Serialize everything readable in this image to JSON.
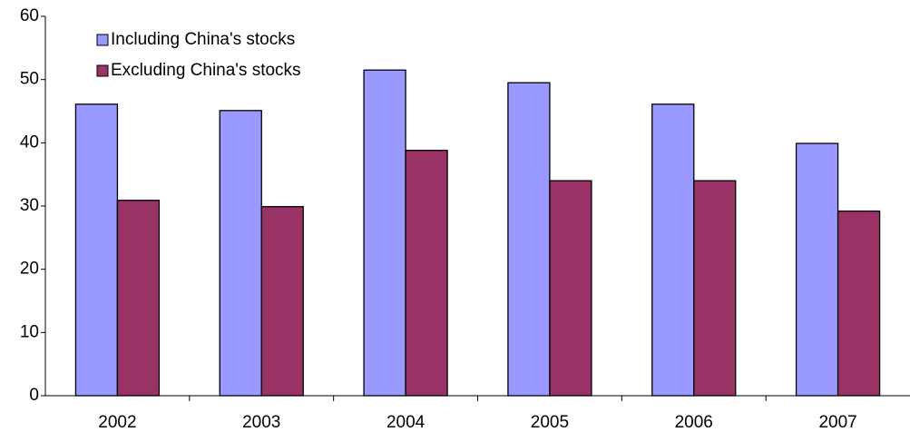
{
  "chart_data": {
    "type": "bar",
    "categories": [
      "2002",
      "2003",
      "2004",
      "2005",
      "2006",
      "2007"
    ],
    "series": [
      {
        "name": "Including China's stocks",
        "color": "#9999ff",
        "values": [
          46.1,
          45.1,
          51.5,
          49.5,
          46.1,
          39.9
        ]
      },
      {
        "name": "Excluding China's stocks",
        "color": "#993366",
        "values": [
          30.9,
          29.9,
          38.8,
          34.0,
          34.0,
          29.2
        ]
      }
    ],
    "ylim": [
      0,
      60
    ],
    "yticks": [
      0,
      10,
      20,
      30,
      40,
      50,
      60
    ],
    "grid": false,
    "legend": "top-left"
  }
}
